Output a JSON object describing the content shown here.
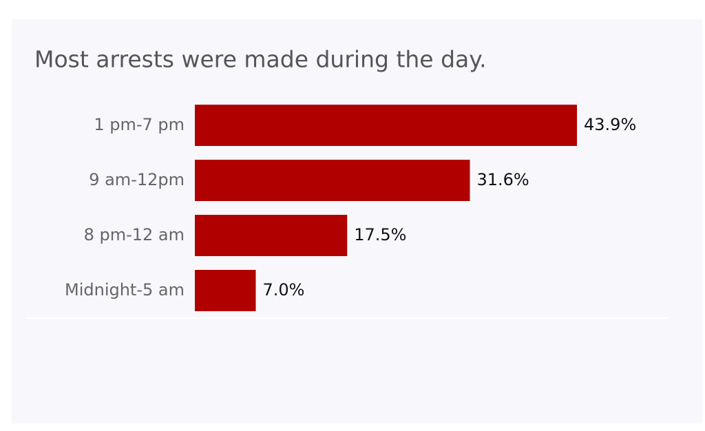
{
  "chart_data": {
    "type": "bar",
    "orientation": "horizontal",
    "title": "Most arrests were made during the day.",
    "categories": [
      "1 pm-7 pm",
      "9 am-12pm",
      "8 pm-12 am",
      "Midnight-5 am"
    ],
    "values": [
      43.9,
      31.6,
      17.5,
      7.0
    ],
    "value_labels": [
      "43.9%",
      "31.6%",
      "17.5%",
      "7.0%"
    ],
    "color": "#b00000"
  }
}
